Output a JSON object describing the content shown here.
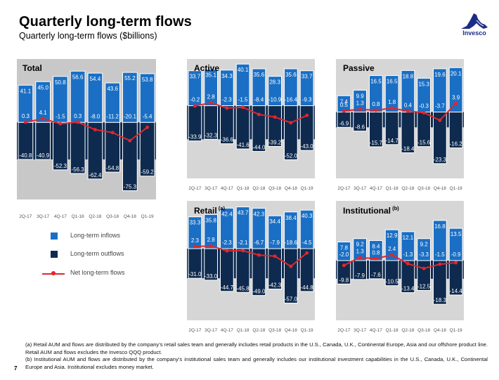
{
  "header": {
    "title": "Quarterly long-term flows",
    "subtitle": "Quarterly long-term flows ($billions)"
  },
  "logo": {
    "name": "Invesco",
    "color": "#1b2c87"
  },
  "colors": {
    "inflow": "#1a6fc4",
    "outflow": "#0e2a4e",
    "net": "#e0262e",
    "panel_bg": "#d6d6d6",
    "total_panel_bg": "#c8c8c8"
  },
  "legend": {
    "items": [
      {
        "label": "Long-term inflows",
        "type": "inflow"
      },
      {
        "label": "Long-term outflows",
        "type": "outflow"
      },
      {
        "label": "Net long-term flows",
        "type": "net"
      }
    ]
  },
  "chart_data": [
    {
      "type": "bar",
      "title": "Total",
      "title_sup": "",
      "categories": [
        "2Q-17",
        "3Q-17",
        "4Q-17",
        "Q1-18",
        "Q2-18",
        "Q3-18",
        "Q4-18",
        "Q1-19"
      ],
      "series": [
        {
          "name": "Long-term inflows",
          "values": [
            41.1,
            45.0,
            50.8,
            56.6,
            54.4,
            43.6,
            55.2,
            53.8
          ]
        },
        {
          "name": "Long-term outflows",
          "values": [
            -40.8,
            -40.9,
            -52.3,
            -56.3,
            -62.4,
            -54.8,
            -75.3,
            -59.2
          ]
        },
        {
          "name": "Net long-term flows",
          "type": "line",
          "values": [
            0.3,
            4.1,
            -1.5,
            0.3,
            -8.0,
            -11.2,
            -20.1,
            -5.4
          ]
        }
      ],
      "ylim": [
        -85,
        70
      ]
    },
    {
      "type": "bar",
      "title": "Active",
      "title_sup": "",
      "categories": [
        "2Q-17",
        "3Q-17",
        "4Q-17",
        "Q1-18",
        "Q2-18",
        "Q3-18",
        "Q4-18",
        "Q1-19"
      ],
      "series": [
        {
          "name": "Long-term inflows",
          "values": [
            33.7,
            35.1,
            34.3,
            40.1,
            35.6,
            28.3,
            35.6,
            33.7
          ]
        },
        {
          "name": "Long-term outflows",
          "values": [
            -33.9,
            -32.3,
            -36.6,
            -41.6,
            -44.0,
            -39.2,
            -52.0,
            -43.0
          ]
        },
        {
          "name": "Net long-term flows",
          "type": "line",
          "values": [
            -0.2,
            2.8,
            -2.3,
            -1.5,
            -8.4,
            -10.9,
            -16.4,
            -9.3
          ]
        }
      ],
      "ylim": [
        -70,
        45
      ]
    },
    {
      "type": "bar",
      "title": "Passive",
      "title_sup": "",
      "categories": [
        "2Q-17",
        "3Q-17",
        "4Q-17",
        "Q1-18",
        "Q2-18",
        "Q3-18",
        "Q4-18",
        "Q1-19"
      ],
      "series": [
        {
          "name": "Long-term inflows",
          "values": [
            7.4,
            9.9,
            16.5,
            16.5,
            18.8,
            15.3,
            19.6,
            20.1
          ]
        },
        {
          "name": "Long-term outflows",
          "values": [
            -6.9,
            -8.6,
            -15.7,
            -14.7,
            -18.4,
            -15.6,
            -23.3,
            -16.2
          ]
        },
        {
          "name": "Net long-term flows",
          "type": "line",
          "values": [
            0.5,
            1.3,
            0.8,
            1.8,
            0.4,
            -0.3,
            -3.7,
            3.9
          ]
        }
      ],
      "ylim": [
        -30,
        24
      ]
    },
    {
      "type": "bar",
      "title": "Retail",
      "title_sup": "(a)",
      "categories": [
        "2Q-17",
        "3Q-17",
        "4Q-17",
        "Q1-18",
        "Q2-18",
        "Q3-18",
        "Q4-18",
        "Q1-19"
      ],
      "series": [
        {
          "name": "Long-term inflows",
          "values": [
            33.3,
            35.8,
            42.4,
            43.7,
            42.3,
            34.4,
            38.4,
            40.3
          ]
        },
        {
          "name": "Long-term outflows",
          "values": [
            -31.0,
            -33.0,
            -44.7,
            -45.8,
            -49.0,
            -42.3,
            -57.0,
            -44.8
          ]
        },
        {
          "name": "Net long-term flows",
          "type": "line",
          "values": [
            2.3,
            2.8,
            -2.3,
            -2.1,
            -6.7,
            -7.9,
            -18.6,
            -4.5
          ]
        }
      ],
      "ylim": [
        -75,
        50
      ]
    },
    {
      "type": "bar",
      "title": "Institutional",
      "title_sup": "(b)",
      "categories": [
        "2Q-17",
        "3Q-17",
        "4Q-17",
        "Q1-18",
        "Q2-18",
        "Q3-18",
        "Q4-18",
        "Q1-19"
      ],
      "series": [
        {
          "name": "Long-term inflows",
          "values": [
            7.8,
            9.2,
            8.4,
            12.9,
            12.1,
            9.2,
            16.8,
            13.5
          ]
        },
        {
          "name": "Long-term outflows",
          "values": [
            -9.8,
            -7.9,
            -7.6,
            -10.5,
            -13.4,
            -12.5,
            -18.3,
            -14.4
          ]
        },
        {
          "name": "Net long-term flows",
          "type": "line",
          "values": [
            -2.0,
            1.3,
            0.8,
            2.4,
            -1.3,
            -3.3,
            -1.5,
            -0.9
          ]
        }
      ],
      "ylim": [
        -25,
        25
      ]
    }
  ],
  "footnotes": [
    "(a) Retail AUM and flows are distributed by the company’s retail sales team and generally includes retail products in the U.S., Canada, U.K., Continental Europe, Asia and our offshore product line.  Retail AUM and flows excludes the Invesco QQQ product.",
    "(b) Institutional AUM and flows are distributed by the company’s institutional sales team and generally includes our institutional investment capabilities in the U.S., Canada, U.K., Continental Europe and Asia.  Institutional excludes money market."
  ],
  "page_number": "7"
}
